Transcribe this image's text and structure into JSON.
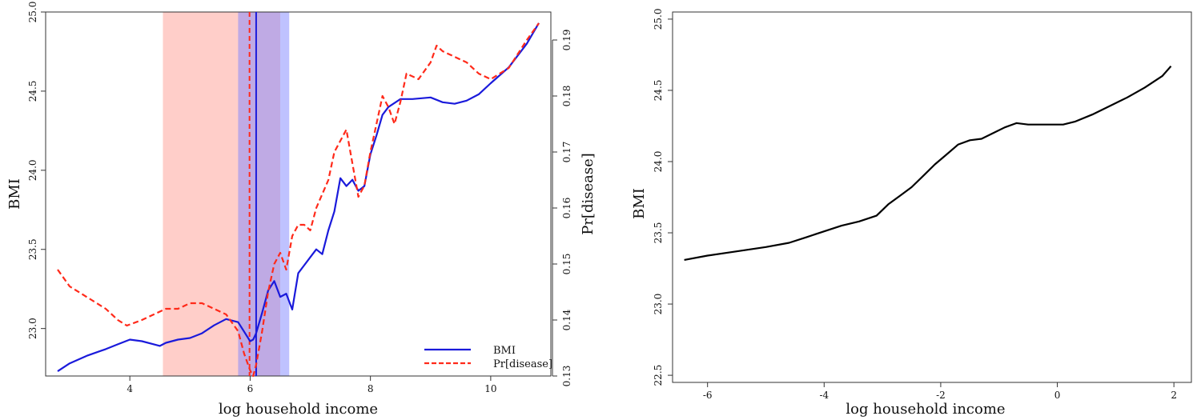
{
  "chart_data": [
    {
      "type": "line",
      "xlabel": "log household income",
      "ylabel": "BMI",
      "y2label": "Pr[disease]",
      "xlim": [
        2.6,
        11.0
      ],
      "ylim": [
        22.7,
        25.0
      ],
      "y2lim": [
        0.13,
        0.195
      ],
      "xticks": [
        "4",
        "6",
        "8",
        "10"
      ],
      "yticks": [
        "23.0",
        "23.5",
        "24.0",
        "24.5",
        "25.0"
      ],
      "y2ticks": [
        "0.13",
        "0.14",
        "0.15",
        "0.16",
        "0.17",
        "0.18",
        "0.19"
      ],
      "legend": {
        "placement": "bottom-right",
        "entries": [
          "BMI",
          "Pr[disease]"
        ]
      },
      "bands": [
        {
          "x": [
            4.55,
            6.5
          ],
          "color": "#ff9d94"
        },
        {
          "x": [
            5.8,
            6.65
          ],
          "color": "#7f86ff"
        }
      ],
      "vlines": [
        {
          "x": 5.99,
          "color": "#ff2a1a",
          "style": "dashed"
        },
        {
          "x": 6.1,
          "color": "#1a1adb",
          "style": "solid"
        }
      ],
      "series": [
        {
          "name": "BMI",
          "color": "#1a1adb",
          "style": "solid",
          "axis": "left",
          "x": [
            2.8,
            3.0,
            3.3,
            3.6,
            3.8,
            4.0,
            4.2,
            4.4,
            4.5,
            4.6,
            4.8,
            5.0,
            5.2,
            5.4,
            5.6,
            5.8,
            5.9,
            6.0,
            6.05,
            6.1,
            6.2,
            6.3,
            6.4,
            6.5,
            6.6,
            6.7,
            6.8,
            6.9,
            7.0,
            7.1,
            7.2,
            7.3,
            7.4,
            7.5,
            7.6,
            7.7,
            7.8,
            7.9,
            8.0,
            8.1,
            8.2,
            8.3,
            8.5,
            8.7,
            9.0,
            9.2,
            9.4,
            9.6,
            9.8,
            10.0,
            10.3,
            10.6,
            10.8
          ],
          "y": [
            22.73,
            22.78,
            22.83,
            22.87,
            22.9,
            22.93,
            22.92,
            22.9,
            22.89,
            22.91,
            22.93,
            22.94,
            22.97,
            23.02,
            23.06,
            23.04,
            22.98,
            22.92,
            22.93,
            22.97,
            23.1,
            23.24,
            23.3,
            23.2,
            23.22,
            23.12,
            23.35,
            23.4,
            23.45,
            23.5,
            23.47,
            23.62,
            23.74,
            23.95,
            23.9,
            23.94,
            23.87,
            23.9,
            24.1,
            24.22,
            24.35,
            24.4,
            24.45,
            24.45,
            24.46,
            24.43,
            24.42,
            24.44,
            24.48,
            24.55,
            24.65,
            24.8,
            24.93
          ]
        },
        {
          "name": "Pr[disease]",
          "color": "#ff2a1a",
          "style": "dashed",
          "axis": "right",
          "x": [
            2.8,
            3.0,
            3.3,
            3.6,
            3.8,
            3.95,
            4.2,
            4.4,
            4.6,
            4.8,
            5.0,
            5.2,
            5.4,
            5.6,
            5.8,
            5.9,
            6.0,
            6.05,
            6.1,
            6.2,
            6.3,
            6.4,
            6.5,
            6.6,
            6.7,
            6.8,
            6.9,
            7.0,
            7.1,
            7.3,
            7.4,
            7.5,
            7.6,
            7.7,
            7.8,
            7.9,
            8.0,
            8.1,
            8.2,
            8.3,
            8.4,
            8.5,
            8.6,
            8.8,
            9.0,
            9.1,
            9.2,
            9.4,
            9.6,
            9.8,
            10.0,
            10.3,
            10.6,
            10.8
          ],
          "y": [
            0.149,
            0.146,
            0.144,
            0.142,
            0.14,
            0.139,
            0.14,
            0.141,
            0.142,
            0.142,
            0.143,
            0.143,
            0.142,
            0.141,
            0.138,
            0.134,
            0.131,
            0.13,
            0.132,
            0.138,
            0.145,
            0.15,
            0.152,
            0.149,
            0.155,
            0.157,
            0.157,
            0.156,
            0.16,
            0.165,
            0.17,
            0.172,
            0.174,
            0.168,
            0.162,
            0.164,
            0.17,
            0.175,
            0.18,
            0.178,
            0.175,
            0.179,
            0.184,
            0.183,
            0.186,
            0.189,
            0.188,
            0.187,
            0.186,
            0.184,
            0.183,
            0.185,
            0.19,
            0.193
          ]
        }
      ]
    },
    {
      "type": "line",
      "xlabel": "log household income",
      "ylabel": "BMI",
      "xlim": [
        -6.6,
        2.3
      ],
      "ylim": [
        22.45,
        25.05
      ],
      "xticks": [
        "-6",
        "-4",
        "-2",
        "0",
        "2"
      ],
      "yticks": [
        "22.5",
        "23.0",
        "23.5",
        "24.0",
        "24.5",
        "25.0"
      ],
      "series": [
        {
          "color": "#000000",
          "style": "solid",
          "x": [
            -6.4,
            -6.0,
            -5.5,
            -5.0,
            -4.6,
            -4.3,
            -4.0,
            -3.7,
            -3.4,
            -3.1,
            -2.9,
            -2.7,
            -2.5,
            -2.3,
            -2.1,
            -1.9,
            -1.7,
            -1.5,
            -1.3,
            -1.1,
            -0.9,
            -0.7,
            -0.5,
            -0.3,
            -0.1,
            0.1,
            0.3,
            0.6,
            0.9,
            1.2,
            1.5,
            1.8,
            1.95
          ],
          "y": [
            23.31,
            23.34,
            23.37,
            23.4,
            23.43,
            23.47,
            23.51,
            23.55,
            23.58,
            23.62,
            23.7,
            23.76,
            23.82,
            23.9,
            23.98,
            24.05,
            24.12,
            24.15,
            24.16,
            24.2,
            24.24,
            24.27,
            24.26,
            24.26,
            24.26,
            24.26,
            24.28,
            24.33,
            24.39,
            24.45,
            24.52,
            24.6,
            24.67
          ]
        }
      ]
    }
  ]
}
